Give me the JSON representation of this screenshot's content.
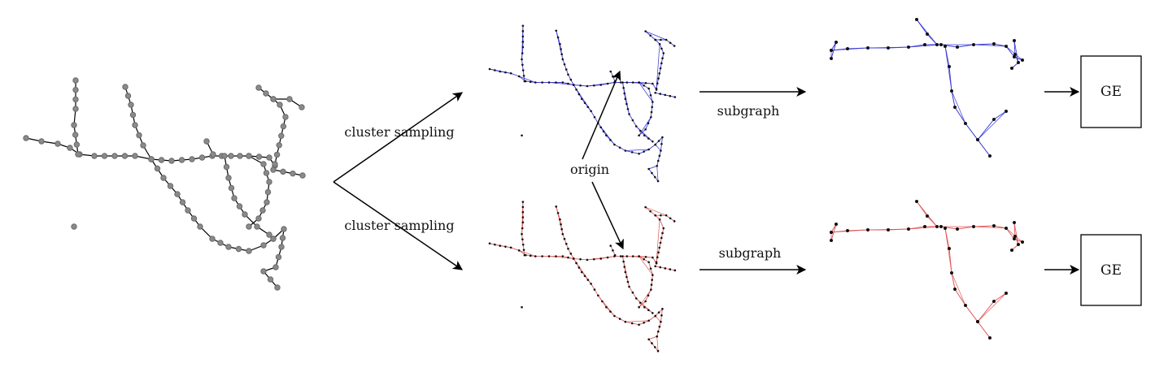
{
  "labels": {
    "top_arrow": "cluster sampling",
    "bottom_arrow": "cluster sampling",
    "subgraph_top": "subgraph",
    "subgraph_bottom": "subgraph",
    "origin": "origin",
    "ge_top": "GE",
    "ge_bottom": "GE"
  },
  "colors": {
    "original_graph_node": "#8a8a8a",
    "original_graph_edge": "#000000",
    "top_sample_edge": "#3b3bd6",
    "bottom_sample_edge": "#e05a5a",
    "node_dot": "#111111"
  }
}
